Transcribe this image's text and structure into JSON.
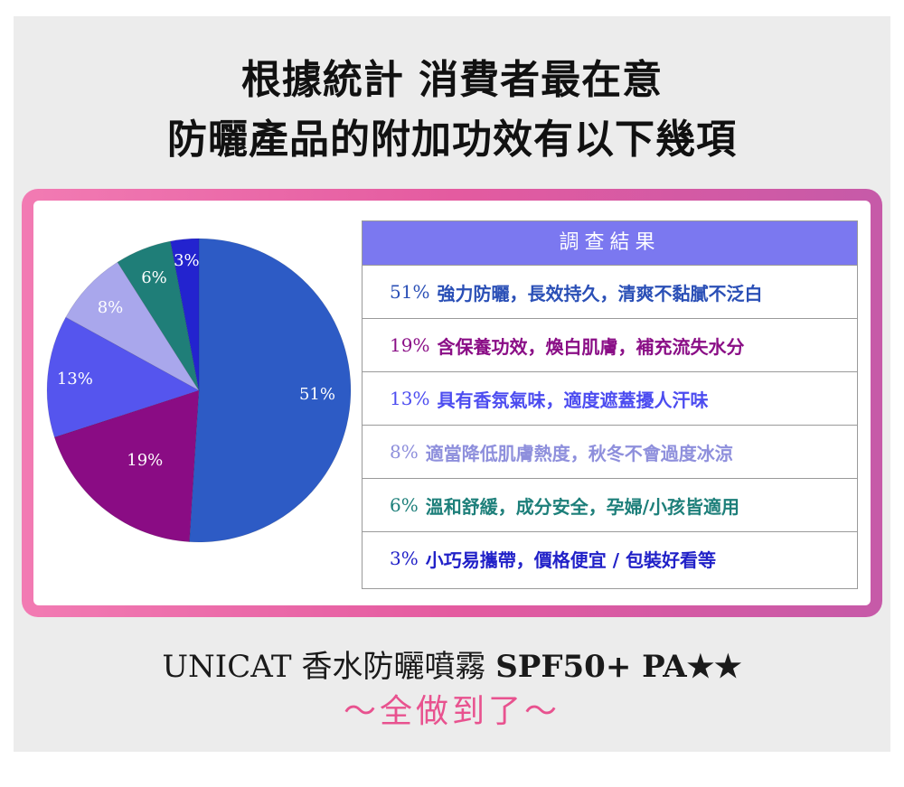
{
  "headline": {
    "line1": "根據統計 消費者最在意",
    "line2": "防曬產品的附加功效有以下幾項"
  },
  "table": {
    "header": "調查結果",
    "rows": [
      {
        "pct": "51%",
        "text": "強力防曬，長效持久，清爽不黏膩不泛白",
        "color": "#2a4fb6"
      },
      {
        "pct": "19%",
        "text": "含保養功效，煥白肌膚，補充流失水分",
        "color": "#8a0e86"
      },
      {
        "pct": "13%",
        "text": "具有香氛氣味，適度遮蓋擾人汗味",
        "color": "#4c4cf0"
      },
      {
        "pct": "8%",
        "text": "適當降低肌膚熱度，秋冬不會過度冰涼",
        "color": "#8e8fdc"
      },
      {
        "pct": "6%",
        "text": "溫和舒緩，成分安全，孕婦/小孩皆適用",
        "color": "#1d7f7a"
      },
      {
        "pct": "3%",
        "text": "小巧易攜帶，價格便宜 / 包裝好看等",
        "color": "#2121c8"
      }
    ]
  },
  "footer": {
    "brand_start": "UNICAT",
    "product": "香水防曬噴霧",
    "spf": "SPF50+ PA★★",
    "tagline": "～全做到了～"
  },
  "chart_data": {
    "type": "pie",
    "start_angle_deg": 0,
    "direction": "clockwise",
    "slices": [
      {
        "label": "51%",
        "value": 51,
        "color": "#2d5bc5"
      },
      {
        "label": "19%",
        "value": 19,
        "color": "#8a0c84"
      },
      {
        "label": "13%",
        "value": 13,
        "color": "#5555ee"
      },
      {
        "label": "8%",
        "value": 8,
        "color": "#a9a7ec"
      },
      {
        "label": "6%",
        "value": 6,
        "color": "#1f7e78"
      },
      {
        "label": "3%",
        "value": 3,
        "color": "#2323cf"
      }
    ]
  }
}
